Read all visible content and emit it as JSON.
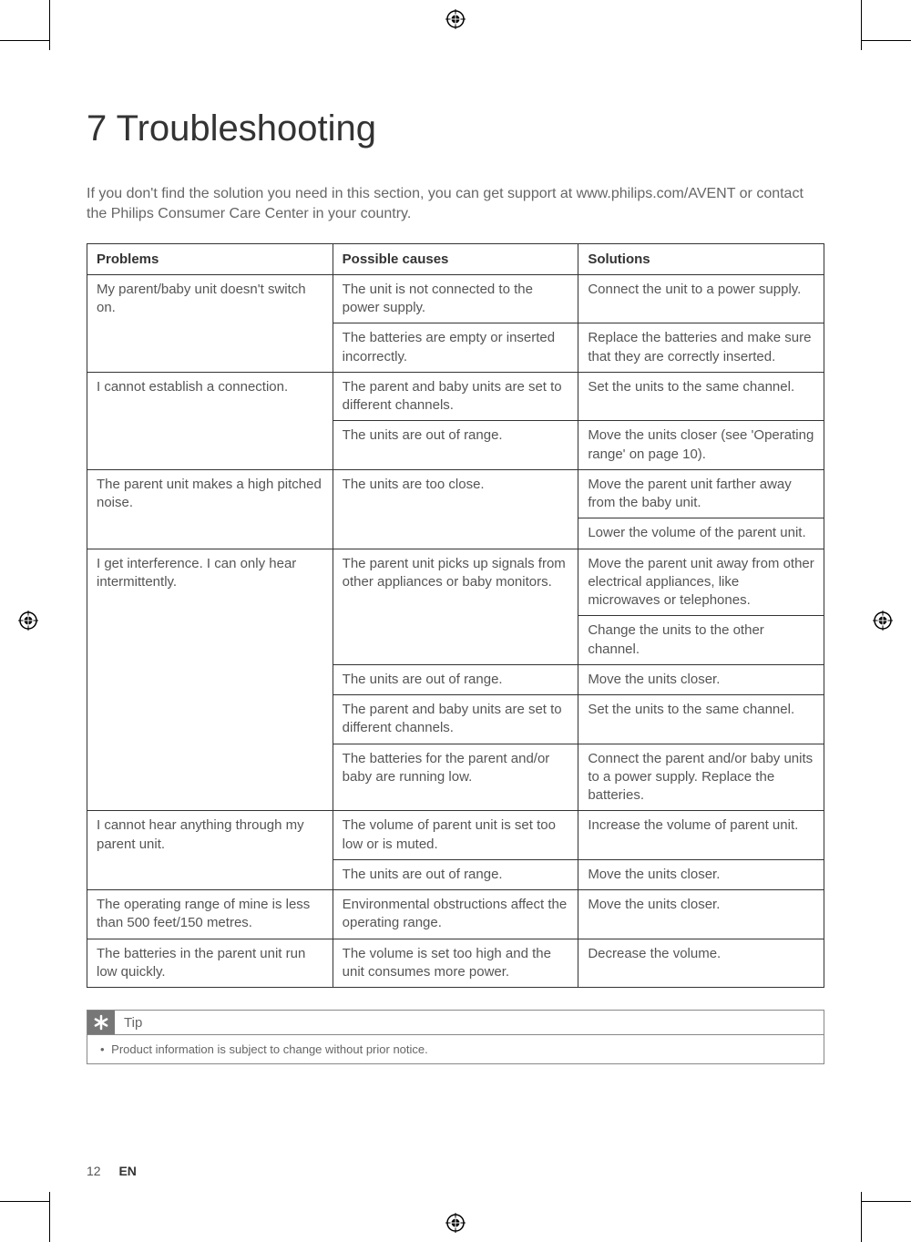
{
  "heading": "7   Troubleshooting",
  "intro": "If you don't find the solution you need in this section, you can get support at www.philips.com/AVENT or contact the Philips Consumer Care Center in your country.",
  "table": {
    "headers": {
      "problems": "Problems",
      "causes": "Possible causes",
      "solutions": "Solutions"
    },
    "rows": [
      {
        "problem": "My parent/baby unit doesn't switch on.",
        "problem_rowspan": 2,
        "cause": "The unit is not connected to the power supply.",
        "solution": "Connect the unit to a power supply."
      },
      {
        "cause": "The batteries are empty or inserted incorrectly.",
        "solution": "Replace the batteries and make sure that they are correctly inserted."
      },
      {
        "problem": "I cannot establish a connection.",
        "problem_rowspan": 2,
        "cause": "The parent and baby units are set to different channels.",
        "solution": "Set the units to the same channel."
      },
      {
        "cause": "The units are out of range.",
        "solution": "Move the units closer (see 'Operating range' on page 10)."
      },
      {
        "problem": "The parent unit makes a high pitched noise.",
        "problem_rowspan": 2,
        "cause": "The units are too close.",
        "cause_rowspan": 2,
        "solution": "Move the parent unit farther away from the baby unit."
      },
      {
        "solution": "Lower the volume of the parent unit."
      },
      {
        "problem": "I get interference. I can only hear intermittently.",
        "problem_rowspan": 5,
        "cause": "The parent unit picks up signals from other appliances or baby monitors.",
        "cause_rowspan": 2,
        "solution": "Move the parent unit away from other electrical appliances, like microwaves or telephones."
      },
      {
        "solution": "Change the units to the other channel."
      },
      {
        "cause": "The units are out of range.",
        "solution": "Move the units closer."
      },
      {
        "cause": "The parent and baby units are set to different channels.",
        "solution": "Set the units to the same channel."
      },
      {
        "cause": "The batteries for the parent and/or baby are running low.",
        "solution": "Connect the parent and/or baby units to a power supply. Replace the batteries."
      },
      {
        "problem": "I cannot hear anything through my parent unit.",
        "problem_rowspan": 2,
        "cause": "The volume of parent unit is set too low or is muted.",
        "solution": "Increase the volume of parent unit."
      },
      {
        "cause": "The units are out of range.",
        "solution": "Move the units closer."
      },
      {
        "problem": "The operating range of mine is less than 500 feet/150 metres.",
        "cause": "Environmental obstructions affect the operating range.",
        "solution": "Move the units closer."
      },
      {
        "problem": "The batteries in the parent unit run low quickly.",
        "cause": "The volume is set too high and the unit consumes more power.",
        "solution": "Decrease the volume."
      }
    ]
  },
  "tip": {
    "label": "Tip",
    "content": "Product information is subject to change without prior notice."
  },
  "pagenum": "12",
  "lang": "EN"
}
